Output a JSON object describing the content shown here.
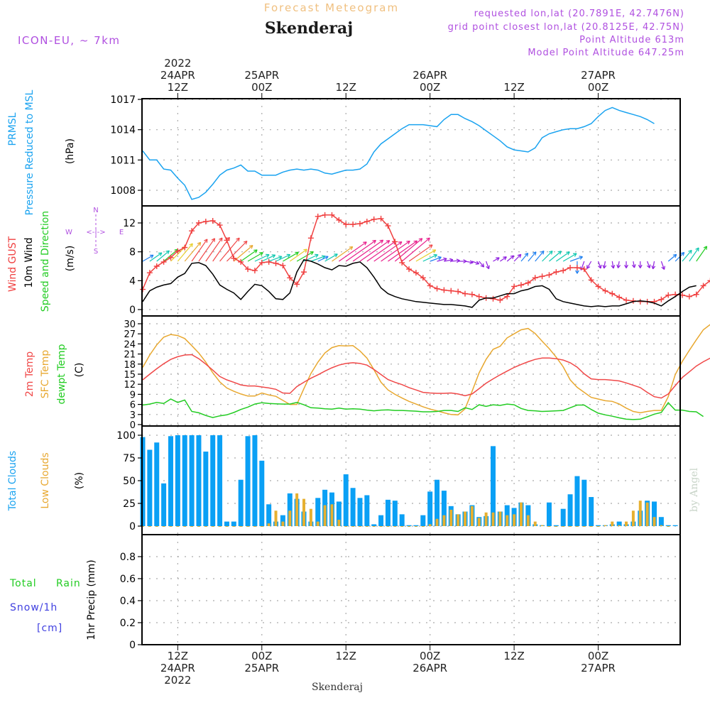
{
  "header": {
    "subtitle": "Forecast Meteogram",
    "title": "Skenderaj",
    "model": "ICON-EU, ~ 7km",
    "requested": "requested lon,lat (20.7891E, 42.7476N)",
    "gridpoint": "grid point closest lon,lat (20.8125E, 42.75N)",
    "altitude": "Point Altitude 613m",
    "model_altitude": "Model Point Altitude 647.25m",
    "footer_title": "Skenderaj",
    "watermark": "by Angel"
  },
  "colors": {
    "pressure": "#1aa3f0",
    "gust": "#f04040",
    "wind": "#000000",
    "temp2m": "#f04848",
    "sfctemp": "#e8a830",
    "dewpt": "#22cc22",
    "total_clouds": "#0aa0f5",
    "low_clouds": "#e6b030",
    "meta": "#b050e0",
    "subtitle": "#f0c080",
    "rain": "#22cc22",
    "snow": "#4040e0"
  },
  "time_axis": {
    "top": [
      {
        "hour": 5,
        "lines": [
          "2022",
          "24APR",
          "12Z"
        ]
      },
      {
        "hour": 17,
        "lines": [
          "25APR",
          "00Z"
        ]
      },
      {
        "hour": 29,
        "lines": [
          "12Z"
        ]
      },
      {
        "hour": 41,
        "lines": [
          "26APR",
          "00Z"
        ]
      },
      {
        "hour": 53,
        "lines": [
          "12Z"
        ]
      },
      {
        "hour": 65,
        "lines": [
          "27APR",
          "00Z"
        ]
      }
    ],
    "bottom": [
      {
        "hour": 5,
        "lines": [
          "12Z",
          "24APR",
          "2022"
        ]
      },
      {
        "hour": 17,
        "lines": [
          "00Z",
          "25APR"
        ]
      },
      {
        "hour": 29,
        "lines": [
          "12Z"
        ]
      },
      {
        "hour": 41,
        "lines": [
          "00Z",
          "26APR"
        ]
      },
      {
        "hour": 53,
        "lines": [
          "12Z"
        ]
      },
      {
        "hour": 65,
        "lines": [
          "00Z",
          "27APR"
        ]
      }
    ],
    "start": "24APR2022 07Z",
    "end": "27APR2022 11Z",
    "step_hours": 1
  },
  "panel_labels": {
    "pressure": [
      "PRMSL",
      "Pressure Reduced to MSL",
      "(hPa)"
    ],
    "wind": [
      "Wind GUST",
      "10m Wind",
      "Speed and Direction",
      "(m/s)"
    ],
    "compass": {
      "n": "N",
      "s": "S",
      "e": "E",
      "w": "W"
    },
    "temp": [
      "2m Temp",
      "SFC Temp",
      "dewpt Temp",
      "(C)"
    ],
    "clouds": [
      "Total Clouds",
      "Low Clouds",
      "(%)"
    ],
    "precip": [
      "Total",
      "Rain",
      "Snow/1h",
      "[cm]",
      "1hr Precip (mm)"
    ]
  },
  "chart_data": [
    {
      "type": "line",
      "title": "PRMSL Pressure Reduced to MSL",
      "ylabel": "(hPa)",
      "ylim": [
        1006.2,
        1017.2
      ],
      "yticks": [
        1008,
        1011,
        1014,
        1017
      ],
      "series": [
        {
          "name": "PRMSL",
          "x_step_hours": 1,
          "values": [
            1011.9,
            1011.0,
            1011.0,
            1010.1,
            1010.0,
            1009.2,
            1008.5,
            1007.1,
            1007.3,
            1007.8,
            1008.6,
            1009.5,
            1010.0,
            1010.2,
            1010.5,
            1009.9,
            1009.9,
            1009.5,
            1009.5,
            1009.5,
            1009.8,
            1010.0,
            1010.1,
            1010.0,
            1010.1,
            1010.0,
            1009.7,
            1009.6,
            1009.8,
            1010.0,
            1010.0,
            1010.1,
            1010.6,
            1011.8,
            1012.6,
            1013.1,
            1013.6,
            1014.1,
            1014.5,
            1014.5,
            1014.5,
            1014.4,
            1014.3,
            1015.0,
            1015.5,
            1015.5,
            1015.1,
            1014.8,
            1014.4,
            1013.9,
            1013.4,
            1012.9,
            1012.3,
            1012.0,
            1011.9,
            1011.8,
            1012.2,
            1013.2,
            1013.6,
            1013.8,
            1014.0,
            1014.1,
            1014.1,
            1014.3,
            1014.6,
            1015.3,
            1015.9,
            1016.2,
            1015.9,
            1015.7,
            1015.5,
            1015.3,
            1015.0,
            1014.6
          ]
        }
      ]
    },
    {
      "type": "line",
      "title": "Wind GUST / 10m Wind Speed and Direction",
      "ylabel": "(m/s)",
      "ylim": [
        -0.4,
        14.2
      ],
      "yticks": [
        0,
        4,
        8,
        12
      ],
      "series": [
        {
          "name": "Wind GUST",
          "x_step_hours": 1,
          "values": [
            2.8,
            5.1,
            6.0,
            6.6,
            7.2,
            8.1,
            8.6,
            10.9,
            12.0,
            12.2,
            12.3,
            11.7,
            9.6,
            7.1,
            6.6,
            5.6,
            5.4,
            6.5,
            6.6,
            6.4,
            6.1,
            4.4,
            3.5,
            5.2,
            9.9,
            12.9,
            13.1,
            13.1,
            12.4,
            11.8,
            11.8,
            11.9,
            12.2,
            12.5,
            12.6,
            11.6,
            9.4,
            6.5,
            5.6,
            5.1,
            4.4,
            3.3,
            2.9,
            2.7,
            2.6,
            2.5,
            2.2,
            2.1,
            1.8,
            1.6,
            1.5,
            1.3,
            1.8,
            3.2,
            3.4,
            3.7,
            4.4,
            4.6,
            4.8,
            5.2,
            5.4,
            5.8,
            5.8,
            5.6,
            4.1,
            3.2,
            2.6,
            2.2,
            1.7,
            1.3,
            1.2,
            1.1,
            1.1,
            1.1,
            1.4,
            2.0,
            2.1,
            2.0,
            1.8,
            2.1,
            3.3,
            4.0,
            4.8,
            5.7,
            6.4
          ]
        },
        {
          "name": "10m Wind",
          "x_step_hours": 1,
          "values": [
            1.1,
            2.6,
            3.1,
            3.4,
            3.6,
            4.5,
            5.0,
            6.4,
            6.5,
            6.1,
            4.9,
            3.4,
            2.8,
            2.3,
            1.4,
            2.5,
            3.5,
            3.3,
            2.5,
            1.5,
            1.4,
            2.3,
            5.2,
            6.9,
            6.7,
            6.3,
            5.8,
            5.5,
            6.1,
            6.0,
            6.4,
            6.6,
            5.8,
            4.5,
            3.0,
            2.2,
            1.8,
            1.5,
            1.3,
            1.1,
            1.0,
            0.9,
            0.8,
            0.7,
            0.7,
            0.6,
            0.5,
            0.3,
            1.3,
            1.6,
            1.6,
            1.9,
            2.2,
            2.2,
            2.6,
            2.8,
            3.2,
            3.3,
            2.8,
            1.5,
            1.1,
            0.9,
            0.7,
            0.5,
            0.4,
            0.5,
            0.4,
            0.5,
            0.5,
            0.8,
            1.1,
            1.2,
            1.1,
            0.9,
            0.5,
            1.2,
            1.8,
            2.5,
            3.1,
            3.3
          ]
        }
      ],
      "wind_direction_arrows": {
        "note": "arrow per hour pointing in flow direction, colored by speed",
        "speeds": [
          2.5,
          3.3,
          3.8,
          4.5,
          5.2,
          5.9,
          6.4,
          7.1,
          7.4,
          7.6,
          7.8,
          8.2,
          7.6,
          6.4,
          4.9,
          4.1,
          3.6,
          3.3,
          3.0,
          3.6,
          4.3,
          5.2,
          4.6,
          3.6,
          3.4,
          2.2,
          3.2,
          6.6,
          9.2,
          10.1,
          10.2,
          10.0,
          9.6,
          9.3,
          9.7,
          9.8,
          9.8,
          10.0,
          7.6,
          5.8,
          3.5,
          2.4,
          1.8,
          1.5,
          1.4,
          1.3,
          1.2,
          1.0,
          1.0,
          1.2,
          0.9,
          1.1,
          1.4,
          1.7,
          2.0,
          2.5,
          2.9,
          3.2,
          3.6,
          3.8,
          3.5,
          2.8,
          2.5,
          1.6,
          1.3,
          1.0,
          0.9,
          0.9,
          0.8,
          0.8,
          0.7,
          0.8,
          0.9,
          1.1,
          1.4,
          2.0,
          2.6,
          3.2,
          3.8,
          4.4
        ],
        "directions_deg": [
          240,
          235,
          230,
          230,
          225,
          220,
          220,
          215,
          215,
          215,
          215,
          220,
          225,
          230,
          235,
          240,
          245,
          245,
          250,
          245,
          240,
          235,
          240,
          245,
          250,
          245,
          240,
          235,
          235,
          235,
          235,
          235,
          235,
          235,
          235,
          235,
          230,
          230,
          235,
          240,
          245,
          250,
          255,
          260,
          265,
          270,
          280,
          290,
          320,
          340,
          240,
          235,
          230,
          225,
          220,
          220,
          220,
          225,
          230,
          235,
          240,
          250,
          0,
          20,
          30,
          340,
          10,
          350,
          10,
          0,
          350,
          0,
          340,
          10,
          340,
          230,
          225,
          220,
          215,
          215
        ]
      }
    },
    {
      "type": "line",
      "title": "2m Temp / SFC Temp / dewpt Temp",
      "ylabel": "(C)",
      "ylim": [
        0,
        31
      ],
      "yticks": [
        0,
        3,
        6,
        9,
        12,
        15,
        18,
        21,
        24,
        27,
        30
      ],
      "series": [
        {
          "name": "2m Temp",
          "x_step_hours": 1,
          "values": [
            13.3,
            15.0,
            16.6,
            18.1,
            19.4,
            20.2,
            20.7,
            20.8,
            19.6,
            18.0,
            16.2,
            14.3,
            13.3,
            12.6,
            11.8,
            11.5,
            11.5,
            11.2,
            10.9,
            10.5,
            9.4,
            9.3,
            11.3,
            12.6,
            13.8,
            14.8,
            15.9,
            16.9,
            17.7,
            18.2,
            18.4,
            18.2,
            17.7,
            16.4,
            14.9,
            13.4,
            12.6,
            11.9,
            11.0,
            10.3,
            9.6,
            9.4,
            9.3,
            9.3,
            9.4,
            9.1,
            8.6,
            9.1,
            10.7,
            12.3,
            13.6,
            14.8,
            15.9,
            17.0,
            17.9,
            18.7,
            19.4,
            19.8,
            19.8,
            19.6,
            19.2,
            18.4,
            17.1,
            15.1,
            13.6,
            13.4,
            13.4,
            13.2,
            13.0,
            12.4,
            11.7,
            11.0,
            9.6,
            8.3,
            7.9,
            9.1,
            11.6,
            14.0,
            15.7,
            17.4,
            18.7,
            19.8,
            20.7
          ]
        },
        {
          "name": "SFC Temp",
          "x_step_hours": 1,
          "values": [
            17.0,
            20.7,
            23.7,
            26.0,
            26.8,
            26.5,
            25.6,
            23.5,
            21.3,
            18.6,
            15.4,
            12.7,
            10.9,
            9.9,
            9.1,
            8.5,
            8.5,
            9.4,
            8.8,
            8.4,
            7.2,
            6.0,
            6.0,
            10.7,
            15.2,
            18.6,
            21.3,
            22.9,
            23.5,
            23.4,
            23.5,
            21.9,
            19.8,
            16.3,
            12.6,
            10.3,
            9.0,
            7.9,
            6.9,
            6.1,
            5.3,
            4.6,
            4.1,
            3.5,
            3.0,
            2.9,
            4.7,
            9.9,
            15.4,
            19.4,
            22.4,
            23.3,
            25.8,
            27.0,
            28.2,
            28.6,
            27.1,
            24.8,
            22.6,
            20.1,
            17.2,
            13.3,
            11.1,
            9.6,
            8.1,
            7.6,
            7.1,
            6.9,
            6.1,
            4.9,
            3.9,
            3.5,
            3.9,
            4.2,
            4.2,
            8.3,
            14.9,
            18.8,
            22.1,
            25.2,
            28.2,
            29.8,
            30.0
          ]
        },
        {
          "name": "dewpt Temp",
          "x_step_hours": 1,
          "values": [
            5.8,
            6.1,
            6.6,
            6.3,
            7.6,
            6.6,
            7.3,
            3.9,
            3.5,
            2.7,
            2.1,
            2.6,
            2.9,
            3.6,
            4.5,
            5.2,
            6.1,
            6.5,
            6.3,
            6.2,
            6.1,
            6.1,
            6.6,
            5.9,
            5.0,
            4.9,
            4.7,
            4.6,
            4.9,
            4.6,
            4.7,
            4.6,
            4.3,
            4.1,
            4.3,
            4.4,
            4.2,
            4.2,
            4.1,
            4.0,
            3.8,
            3.8,
            3.9,
            4.2,
            4.2,
            3.9,
            5.0,
            4.5,
            5.9,
            5.4,
            5.9,
            5.7,
            6.1,
            5.9,
            4.8,
            4.2,
            4.1,
            3.9,
            4.0,
            4.1,
            4.2,
            5.0,
            5.8,
            5.8,
            4.5,
            3.4,
            2.9,
            2.5,
            2.0,
            1.6,
            1.5,
            1.6,
            2.3,
            3.1,
            3.6,
            6.5,
            4.3,
            4.3,
            3.9,
            3.8,
            2.4
          ]
        }
      ]
    },
    {
      "type": "bar",
      "title": "Total Clouds / Low Clouds",
      "ylabel": "(%)",
      "ylim": [
        0,
        100
      ],
      "yticks": [
        0,
        25,
        50,
        75,
        100
      ],
      "series": [
        {
          "name": "Total Clouds",
          "x_step_hours": 1,
          "values": [
            98,
            84,
            92,
            47,
            99,
            100,
            100,
            100,
            100,
            82,
            100,
            100,
            5,
            5,
            51,
            99,
            100,
            72,
            24,
            5,
            12,
            36,
            30,
            16,
            5,
            31,
            40,
            37,
            27,
            57,
            42,
            31,
            34,
            2,
            12,
            29,
            28,
            13,
            1,
            1,
            12,
            38,
            51,
            39,
            22,
            13,
            16,
            23,
            10,
            11,
            88,
            16,
            23,
            20,
            26,
            23,
            2,
            1,
            26,
            1,
            19,
            35,
            55,
            51,
            32,
            1,
            1,
            2,
            5,
            2,
            5,
            17,
            28,
            27,
            10,
            1,
            1
          ]
        },
        {
          "name": "Low Clouds",
          "x_step_hours": 1,
          "values": [
            0,
            0,
            0,
            0,
            0,
            0,
            0,
            0,
            0,
            0,
            0,
            0,
            0,
            0,
            0,
            0,
            0,
            0,
            3,
            17,
            5,
            17,
            36,
            30,
            19,
            5,
            23,
            24,
            7,
            0,
            0,
            0,
            0,
            0,
            0,
            0,
            0,
            0,
            0,
            0,
            0,
            2,
            8,
            12,
            18,
            13,
            16,
            22,
            9,
            15,
            15,
            16,
            12,
            13,
            26,
            12,
            5,
            1,
            0,
            0,
            0,
            0,
            0,
            0,
            0,
            0,
            1,
            5,
            1,
            5,
            17,
            28,
            26,
            10,
            1,
            0
          ]
        }
      ]
    },
    {
      "type": "bar",
      "title": "Total Rain / Snow 1hr Precip",
      "ylabel": "1hr Precip (mm)",
      "ylim": [
        0,
        0.98
      ],
      "yticks": [
        0,
        0.2,
        0.4,
        0.6,
        0.8
      ],
      "series": [
        {
          "name": "Total Rain",
          "values": []
        },
        {
          "name": "Snow/1h",
          "values": []
        }
      ]
    }
  ]
}
